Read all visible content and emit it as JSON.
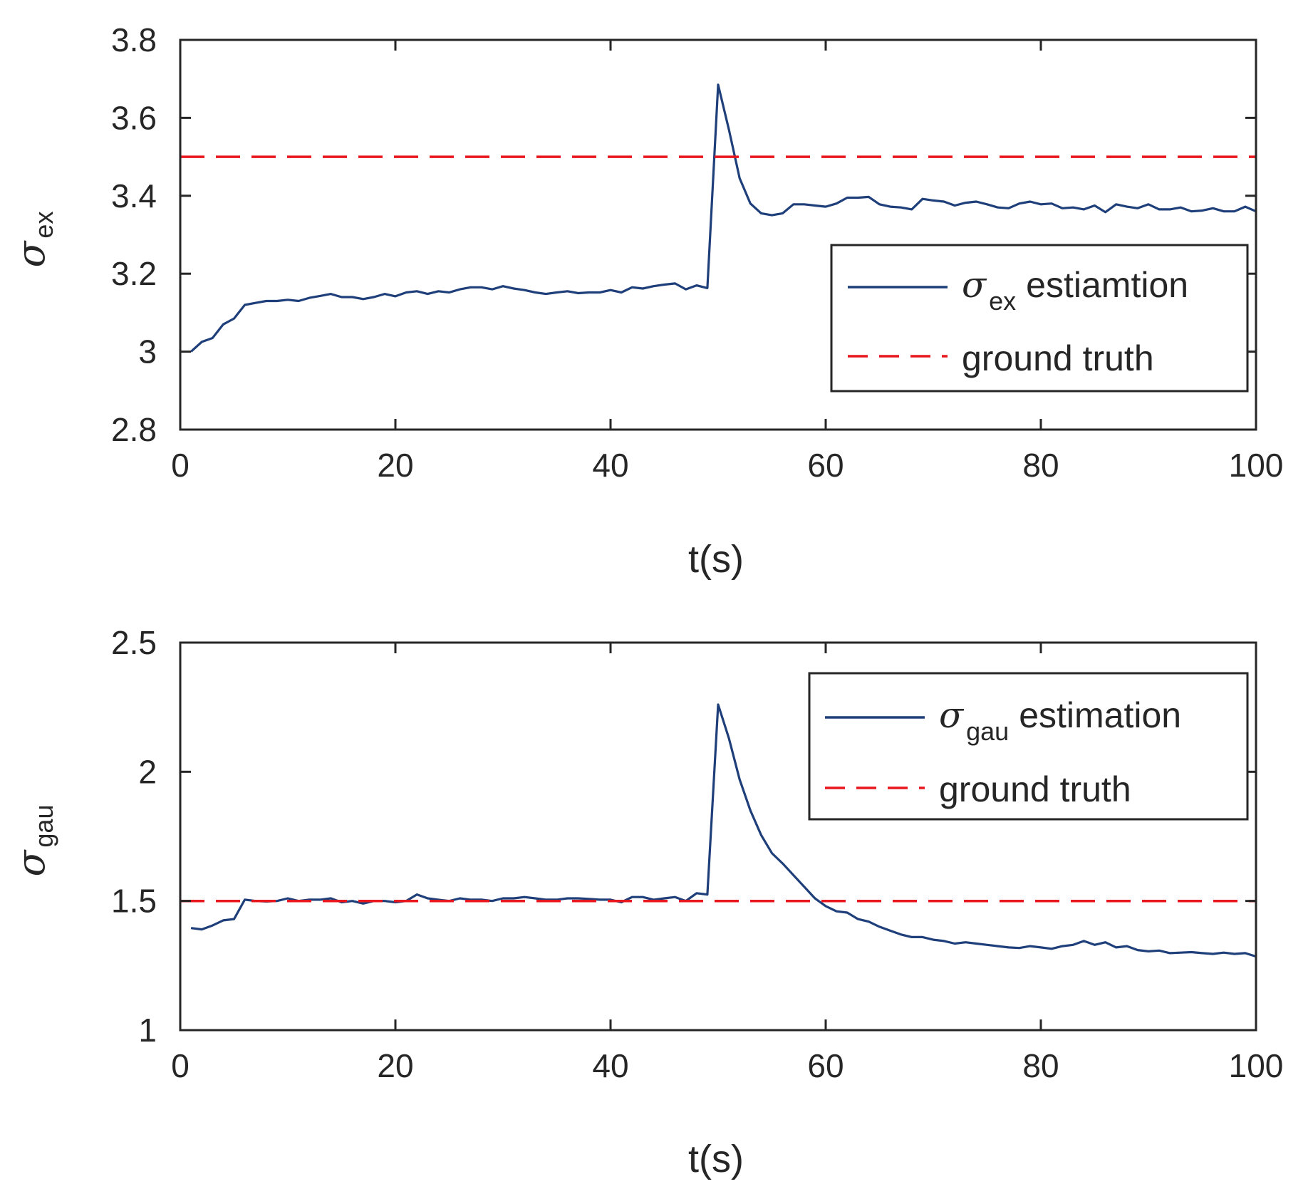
{
  "colors": {
    "estimate": "#1f3f7a",
    "truth": "#e8161d",
    "axis": "#262626",
    "background": "#ffffff"
  },
  "chart_data": [
    {
      "type": "line",
      "title": "",
      "xlabel": "t(s)",
      "ylabel": {
        "symbol": "σ",
        "subscript": "ex"
      },
      "xlim": [
        0,
        100
      ],
      "ylim": [
        2.8,
        3.8
      ],
      "xticks": [
        0,
        20,
        40,
        60,
        80,
        100
      ],
      "xtick_labels": [
        "0",
        "20",
        "40",
        "60",
        "80",
        "100"
      ],
      "yticks": [
        2.8,
        3.0,
        3.2,
        3.4,
        3.6,
        3.8
      ],
      "ytick_labels": [
        "2.8",
        "3",
        "3.2",
        "3.4",
        "3.6",
        "3.8"
      ],
      "grid": false,
      "legend_position": "middle-right",
      "series": [
        {
          "name": "σ ex estiamtion",
          "legend_symbol": "σ",
          "legend_subscript": "ex",
          "legend_text": "estiamtion",
          "style": "solid",
          "x": [
            1,
            2,
            3,
            4,
            5,
            6,
            7,
            8,
            9,
            10,
            11,
            12,
            13,
            14,
            15,
            16,
            17,
            18,
            19,
            20,
            21,
            22,
            23,
            24,
            25,
            26,
            27,
            28,
            29,
            30,
            31,
            32,
            33,
            34,
            35,
            36,
            37,
            38,
            39,
            40,
            41,
            42,
            43,
            44,
            45,
            46,
            47,
            48,
            49,
            50,
            51,
            52,
            53,
            54,
            55,
            56,
            57,
            58,
            59,
            60,
            61,
            62,
            63,
            64,
            65,
            66,
            67,
            68,
            69,
            70,
            71,
            72,
            73,
            74,
            75,
            76,
            77,
            78,
            79,
            80,
            81,
            82,
            83,
            84,
            85,
            86,
            87,
            88,
            89,
            90,
            91,
            92,
            93,
            94,
            95,
            96,
            97,
            98,
            99,
            100
          ],
          "values": [
            3.0,
            3.025,
            3.035,
            3.07,
            3.085,
            3.12,
            3.125,
            3.13,
            3.13,
            3.133,
            3.13,
            3.138,
            3.143,
            3.148,
            3.14,
            3.14,
            3.135,
            3.14,
            3.148,
            3.142,
            3.152,
            3.155,
            3.148,
            3.155,
            3.152,
            3.16,
            3.165,
            3.165,
            3.16,
            3.168,
            3.162,
            3.158,
            3.152,
            3.148,
            3.152,
            3.155,
            3.15,
            3.152,
            3.152,
            3.158,
            3.152,
            3.165,
            3.162,
            3.168,
            3.172,
            3.175,
            3.16,
            3.17,
            3.163,
            3.685,
            3.57,
            3.445,
            3.38,
            3.355,
            3.35,
            3.355,
            3.378,
            3.378,
            3.375,
            3.372,
            3.38,
            3.395,
            3.395,
            3.397,
            3.378,
            3.372,
            3.37,
            3.365,
            3.392,
            3.388,
            3.385,
            3.375,
            3.382,
            3.385,
            3.378,
            3.37,
            3.368,
            3.38,
            3.385,
            3.378,
            3.38,
            3.368,
            3.37,
            3.365,
            3.375,
            3.358,
            3.378,
            3.372,
            3.368,
            3.378,
            3.365,
            3.365,
            3.37,
            3.36,
            3.362,
            3.368,
            3.36,
            3.36,
            3.372,
            3.36
          ]
        },
        {
          "name": "ground truth",
          "legend_text": "ground truth",
          "style": "dashed",
          "x": [
            0,
            100
          ],
          "values": [
            3.5,
            3.5
          ]
        }
      ]
    },
    {
      "type": "line",
      "title": "",
      "xlabel": "t(s)",
      "ylabel": {
        "symbol": "σ",
        "subscript": "gau"
      },
      "xlim": [
        0,
        100
      ],
      "ylim": [
        1.0,
        2.5
      ],
      "xticks": [
        0,
        20,
        40,
        60,
        80,
        100
      ],
      "xtick_labels": [
        "0",
        "20",
        "40",
        "60",
        "80",
        "100"
      ],
      "yticks": [
        1.0,
        1.5,
        2.0,
        2.5
      ],
      "ytick_labels": [
        "1",
        "1.5",
        "2",
        "2.5"
      ],
      "grid": false,
      "legend_position": "top-right",
      "series": [
        {
          "name": "σ gau estimation",
          "legend_symbol": "σ",
          "legend_subscript": "gau",
          "legend_text": "estimation",
          "style": "solid",
          "x": [
            1,
            2,
            3,
            4,
            5,
            6,
            7,
            8,
            9,
            10,
            11,
            12,
            13,
            14,
            15,
            16,
            17,
            18,
            19,
            20,
            21,
            22,
            23,
            24,
            25,
            26,
            27,
            28,
            29,
            30,
            31,
            32,
            33,
            34,
            35,
            36,
            37,
            38,
            39,
            40,
            41,
            42,
            43,
            44,
            45,
            46,
            47,
            48,
            49,
            50,
            51,
            52,
            53,
            54,
            55,
            56,
            57,
            58,
            59,
            60,
            61,
            62,
            63,
            64,
            65,
            66,
            67,
            68,
            69,
            70,
            71,
            72,
            73,
            74,
            75,
            76,
            77,
            78,
            79,
            80,
            81,
            82,
            83,
            84,
            85,
            86,
            87,
            88,
            89,
            90,
            91,
            92,
            93,
            94,
            95,
            96,
            97,
            98,
            99,
            100
          ],
          "values": [
            1.395,
            1.39,
            1.405,
            1.425,
            1.43,
            1.505,
            1.5,
            1.498,
            1.5,
            1.51,
            1.5,
            1.505,
            1.505,
            1.51,
            1.495,
            1.5,
            1.49,
            1.5,
            1.5,
            1.495,
            1.5,
            1.525,
            1.51,
            1.505,
            1.5,
            1.51,
            1.505,
            1.505,
            1.5,
            1.51,
            1.51,
            1.515,
            1.51,
            1.505,
            1.505,
            1.51,
            1.51,
            1.508,
            1.505,
            1.505,
            1.495,
            1.515,
            1.515,
            1.505,
            1.51,
            1.515,
            1.5,
            1.53,
            1.525,
            2.26,
            2.13,
            1.97,
            1.85,
            1.755,
            1.685,
            1.645,
            1.6,
            1.555,
            1.51,
            1.48,
            1.46,
            1.455,
            1.43,
            1.42,
            1.4,
            1.385,
            1.37,
            1.36,
            1.36,
            1.35,
            1.345,
            1.335,
            1.34,
            1.335,
            1.33,
            1.325,
            1.32,
            1.318,
            1.325,
            1.32,
            1.315,
            1.325,
            1.33,
            1.345,
            1.33,
            1.34,
            1.32,
            1.325,
            1.31,
            1.305,
            1.308,
            1.298,
            1.3,
            1.302,
            1.298,
            1.295,
            1.3,
            1.295,
            1.298,
            1.285
          ]
        },
        {
          "name": "ground truth",
          "legend_text": "ground truth",
          "style": "dashed",
          "x": [
            0,
            100
          ],
          "values": [
            1.5,
            1.5
          ]
        }
      ]
    }
  ]
}
